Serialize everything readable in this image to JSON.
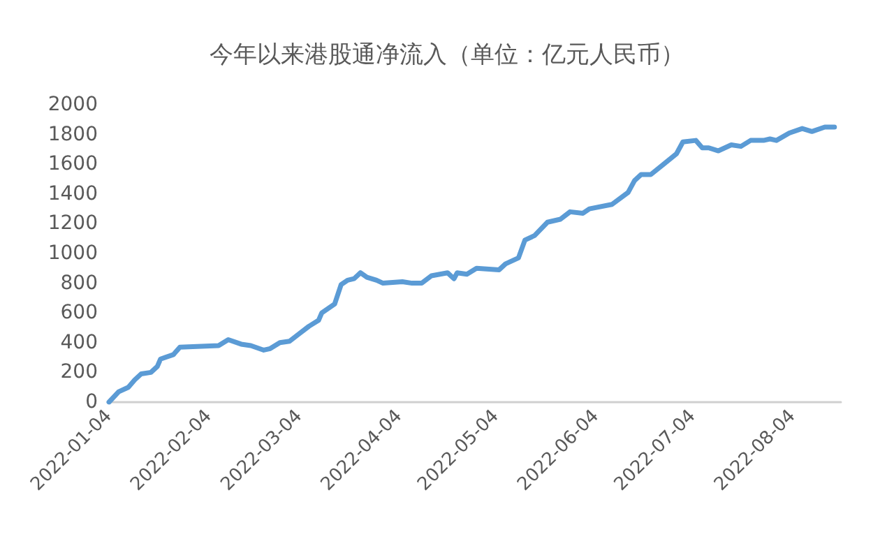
{
  "chart_data": {
    "type": "line",
    "title": "今年以来港股通净流入（单位：亿元人民币）",
    "x": [
      "2022-01-04",
      "2022-01-07",
      "2022-01-10",
      "2022-01-12",
      "2022-01-14",
      "2022-01-17",
      "2022-01-19",
      "2022-01-20",
      "2022-01-24",
      "2022-01-26",
      "2022-02-07",
      "2022-02-10",
      "2022-02-14",
      "2022-02-17",
      "2022-02-21",
      "2022-02-23",
      "2022-02-26",
      "2022-03-01",
      "2022-03-04",
      "2022-03-07",
      "2022-03-10",
      "2022-03-11",
      "2022-03-15",
      "2022-03-17",
      "2022-03-19",
      "2022-03-21",
      "2022-03-23",
      "2022-03-25",
      "2022-03-28",
      "2022-03-30",
      "2022-04-05",
      "2022-04-08",
      "2022-04-11",
      "2022-04-14",
      "2022-04-19",
      "2022-04-21",
      "2022-04-22",
      "2022-04-25",
      "2022-04-28",
      "2022-05-05",
      "2022-05-07",
      "2022-05-11",
      "2022-05-13",
      "2022-05-16",
      "2022-05-20",
      "2022-05-24",
      "2022-05-27",
      "2022-05-31",
      "2022-06-02",
      "2022-06-09",
      "2022-06-14",
      "2022-06-16",
      "2022-06-18",
      "2022-06-21",
      "2022-06-25",
      "2022-06-29",
      "2022-07-01",
      "2022-07-05",
      "2022-07-07",
      "2022-07-09",
      "2022-07-12",
      "2022-07-16",
      "2022-07-19",
      "2022-07-22",
      "2022-07-26",
      "2022-07-28",
      "2022-07-30",
      "2022-08-03",
      "2022-08-07",
      "2022-08-10",
      "2022-08-14",
      "2022-08-17"
    ],
    "series": [
      {
        "color": "#5b9bd5",
        "values": [
          0,
          70,
          100,
          150,
          190,
          200,
          240,
          290,
          320,
          370,
          380,
          420,
          390,
          380,
          350,
          360,
          400,
          410,
          460,
          510,
          550,
          600,
          660,
          790,
          820,
          830,
          870,
          840,
          820,
          800,
          810,
          800,
          800,
          850,
          870,
          830,
          870,
          860,
          900,
          890,
          930,
          970,
          1090,
          1120,
          1210,
          1230,
          1280,
          1270,
          1300,
          1330,
          1410,
          1490,
          1530,
          1530,
          1600,
          1670,
          1750,
          1760,
          1710,
          1710,
          1690,
          1730,
          1720,
          1760,
          1760,
          1770,
          1760,
          1810,
          1840,
          1820,
          1850,
          1850
        ]
      }
    ],
    "xlim": [
      "2022-01-04",
      "2022-08-19"
    ],
    "xticks": [
      "2022-01-04",
      "2022-02-04",
      "2022-03-04",
      "2022-04-04",
      "2022-05-04",
      "2022-06-04",
      "2022-07-04",
      "2022-08-04"
    ],
    "ylim": [
      0,
      2000
    ],
    "yticks": [
      0,
      200,
      400,
      600,
      800,
      1000,
      1200,
      1400,
      1600,
      1800,
      2000
    ],
    "grid": false,
    "marker": "none",
    "line_style": "solid"
  }
}
